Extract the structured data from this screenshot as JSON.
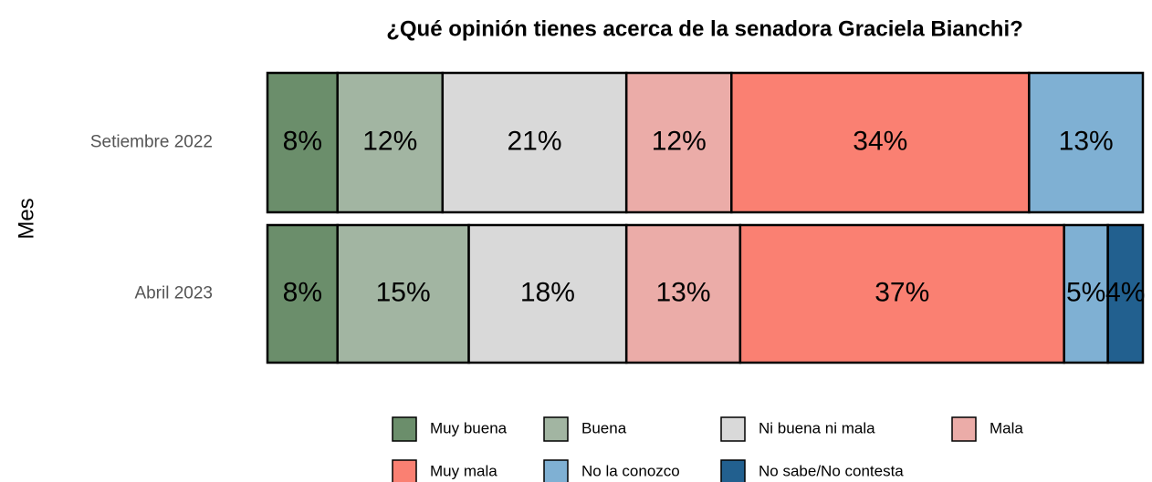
{
  "chart_data": {
    "type": "stacked-barh",
    "title": "¿Qué opinión tienes acerca de la senadora Graciela Bianchi?",
    "ylabel": "Mes",
    "categories": [
      "Setiembre 2022",
      "Abril 2023"
    ],
    "xlim": [
      0,
      100
    ],
    "series": [
      {
        "name": "Muy buena",
        "color": "#6b8e6b",
        "values": [
          8,
          8
        ],
        "value_labels": [
          "8%",
          "8%"
        ]
      },
      {
        "name": "Buena",
        "color": "#a2b5a2",
        "values": [
          12,
          15
        ],
        "value_labels": [
          "12%",
          "15%"
        ]
      },
      {
        "name": "Ni buena ni mala",
        "color": "#d9d9d9",
        "values": [
          21,
          18
        ],
        "value_labels": [
          "21%",
          "18%"
        ]
      },
      {
        "name": "Mala",
        "color": "#ebaca8",
        "values": [
          12,
          13
        ],
        "value_labels": [
          "12%",
          "13%"
        ]
      },
      {
        "name": "Muy mala",
        "color": "#fa8072",
        "values": [
          34,
          37
        ],
        "value_labels": [
          "34%",
          "37%"
        ]
      },
      {
        "name": "No la conozco",
        "color": "#7fb0d3",
        "values": [
          13,
          5
        ],
        "value_labels": [
          "13%",
          "5%"
        ]
      },
      {
        "name": "No sabe/No contesta",
        "color": "#22608f",
        "values": [
          null,
          4
        ],
        "value_labels": [
          null,
          "4%"
        ]
      }
    ]
  }
}
